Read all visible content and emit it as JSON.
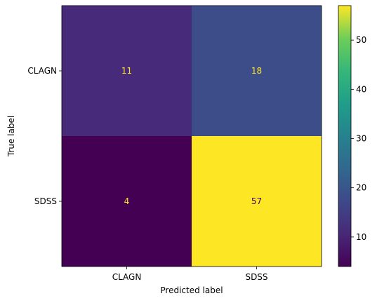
{
  "chart_data": {
    "type": "heatmap",
    "title": "",
    "xlabel": "Predicted label",
    "ylabel": "True label",
    "x_categories": [
      "CLAGN",
      "SDSS"
    ],
    "y_categories": [
      "CLAGN",
      "SDSS"
    ],
    "values": [
      [
        11,
        18
      ],
      [
        4,
        57
      ]
    ],
    "colormap": "viridis",
    "color_range": [
      4,
      57
    ],
    "colorbar_ticks": [
      10,
      20,
      30,
      40,
      50
    ],
    "colorbar_tick_labels": [
      "10",
      "20",
      "30",
      "40",
      "50"
    ],
    "colorbar_position": "right",
    "grid": false,
    "cell_text_colors": {
      "on_dark": "#fde725",
      "on_light": "#440154"
    }
  }
}
